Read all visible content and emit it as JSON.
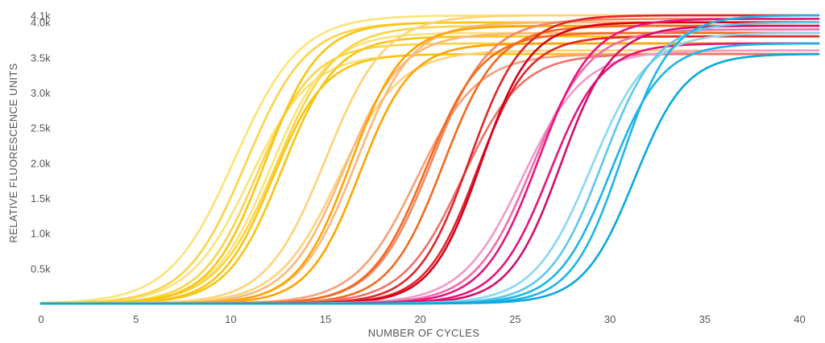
{
  "chart_data": {
    "type": "line",
    "title": "",
    "xlabel": "NUMBER OF CYCLES",
    "ylabel": "RELATIVE FLUORESCENCE UNITS",
    "xlim": [
      0,
      41
    ],
    "ylim": [
      0,
      4100
    ],
    "x_ticks": [
      0,
      5,
      10,
      15,
      20,
      25,
      30,
      35,
      40
    ],
    "x_tick_labels": [
      "0",
      "5",
      "10",
      "15",
      "20",
      "25",
      "30",
      "35",
      "40"
    ],
    "y_ticks": [
      500,
      1000,
      1500,
      2000,
      2500,
      3000,
      3500,
      4000,
      4100
    ],
    "y_tick_labels": [
      "0.5k",
      "1.0k",
      "1.5k",
      "2.0k",
      "2.5k",
      "3.0k",
      "3.5k",
      "4.0k",
      "4.1k"
    ],
    "grid": false,
    "legend": "none",
    "baseline": 0,
    "curve_model": "sigmoid",
    "series": [
      {
        "color": "#FBE37A",
        "midpoint": 10.2,
        "slope": 0.58,
        "plateau": 4100
      },
      {
        "color": "#FBE37A",
        "midpoint": 11.0,
        "slope": 0.62,
        "plateau": 3550
      },
      {
        "color": "#FBE37A",
        "midpoint": 12.1,
        "slope": 0.66,
        "plateau": 3850
      },
      {
        "color": "#FAD447",
        "midpoint": 10.8,
        "slope": 0.63,
        "plateau": 4000
      },
      {
        "color": "#FAD447",
        "midpoint": 11.4,
        "slope": 0.68,
        "plateau": 3700
      },
      {
        "color": "#FAD447",
        "midpoint": 12.4,
        "slope": 0.64,
        "plateau": 3950
      },
      {
        "color": "#F9C412",
        "midpoint": 11.8,
        "slope": 0.7,
        "plateau": 4000
      },
      {
        "color": "#F9C412",
        "midpoint": 12.2,
        "slope": 0.72,
        "plateau": 3550
      },
      {
        "color": "#F9C412",
        "midpoint": 12.7,
        "slope": 0.7,
        "plateau": 3800
      },
      {
        "color": "#FFD27A",
        "midpoint": 15.0,
        "slope": 0.64,
        "plateau": 4100
      },
      {
        "color": "#FFD27A",
        "midpoint": 15.7,
        "slope": 0.62,
        "plateau": 3600
      },
      {
        "color": "#F9B87E",
        "midpoint": 16.0,
        "slope": 0.66,
        "plateau": 3850
      },
      {
        "color": "#F9B87E",
        "midpoint": 16.6,
        "slope": 0.68,
        "plateau": 4000
      },
      {
        "color": "#FFA400",
        "midpoint": 16.3,
        "slope": 0.72,
        "plateau": 3950
      },
      {
        "color": "#FFA400",
        "midpoint": 16.8,
        "slope": 0.74,
        "plateau": 3700
      },
      {
        "color": "#F7A07A",
        "midpoint": 19.8,
        "slope": 0.62,
        "plateau": 3550
      },
      {
        "color": "#F58560",
        "midpoint": 20.6,
        "slope": 0.66,
        "plateau": 4050
      },
      {
        "color": "#F26A1F",
        "midpoint": 20.3,
        "slope": 0.68,
        "plateau": 3850
      },
      {
        "color": "#F26A1F",
        "midpoint": 21.2,
        "slope": 0.7,
        "plateau": 3950
      },
      {
        "color": "#EE7268",
        "midpoint": 22.2,
        "slope": 0.64,
        "plateau": 3550
      },
      {
        "color": "#E0262B",
        "midpoint": 22.6,
        "slope": 0.72,
        "plateau": 4100
      },
      {
        "color": "#E0262B",
        "midpoint": 23.0,
        "slope": 0.74,
        "plateau": 3800
      },
      {
        "color": "#D6001C",
        "midpoint": 23.2,
        "slope": 0.76,
        "plateau": 4000
      },
      {
        "color": "#F29AC8",
        "midpoint": 25.4,
        "slope": 0.62,
        "plateau": 3600
      },
      {
        "color": "#EE6CAA",
        "midpoint": 25.9,
        "slope": 0.66,
        "plateau": 3900
      },
      {
        "color": "#E7147C",
        "midpoint": 26.2,
        "slope": 0.7,
        "plateau": 4050
      },
      {
        "color": "#E7147C",
        "midpoint": 26.8,
        "slope": 0.72,
        "plateau": 3700
      },
      {
        "color": "#D10F6E",
        "midpoint": 27.4,
        "slope": 0.74,
        "plateau": 3950
      },
      {
        "color": "#8AD8F0",
        "midpoint": 29.0,
        "slope": 0.66,
        "plateau": 3850
      },
      {
        "color": "#5BC8EC",
        "midpoint": 29.6,
        "slope": 0.7,
        "plateau": 4000
      },
      {
        "color": "#1CB5E8",
        "midpoint": 30.0,
        "slope": 0.72,
        "plateau": 3700
      },
      {
        "color": "#1CB5E8",
        "midpoint": 30.6,
        "slope": 0.76,
        "plateau": 4100
      },
      {
        "color": "#0AA8DE",
        "midpoint": 31.3,
        "slope": 0.74,
        "plateau": 3550
      }
    ]
  }
}
